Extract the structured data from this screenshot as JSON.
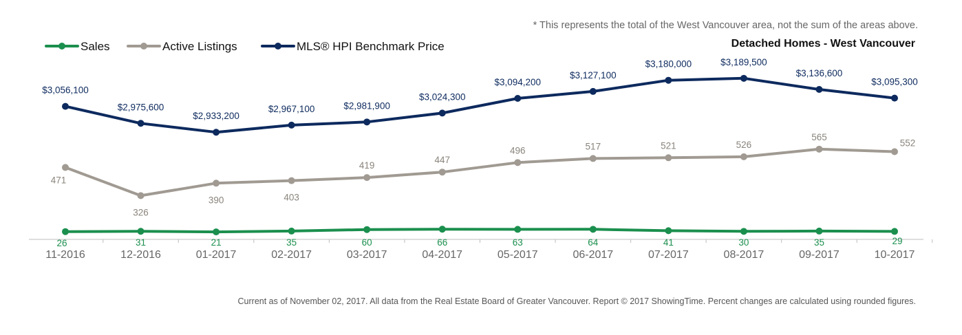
{
  "note": "* This represents the total of the West Vancouver area, not the sum of the areas above.",
  "subtitle": "Detached Homes - West Vancouver",
  "footer": "Current as of November 02, 2017. All data from the Real Estate Board of Greater Vancouver. Report © 2017 ShowingTime. Percent changes are calculated using rounded figures.",
  "chart_data": {
    "type": "line",
    "title": "Detached Homes - West Vancouver",
    "categories": [
      "11-2016",
      "12-2016",
      "01-2017",
      "02-2017",
      "03-2017",
      "04-2017",
      "05-2017",
      "06-2017",
      "07-2017",
      "08-2017",
      "09-2017",
      "10-2017"
    ],
    "legend_position": "top-left",
    "grid": false,
    "series": [
      {
        "name": "Sales",
        "color": "#1b8f4e",
        "label_color": "#1b8f4e",
        "values": [
          26,
          31,
          21,
          35,
          60,
          66,
          63,
          64,
          41,
          30,
          35,
          29
        ],
        "labels": [
          "26",
          "31",
          "21",
          "35",
          "60",
          "66",
          "63",
          "64",
          "41",
          "30",
          "35",
          "29"
        ]
      },
      {
        "name": "Active Listings",
        "color": "#a09a92",
        "label_color": "#8a847c",
        "values": [
          471,
          326,
          390,
          403,
          419,
          447,
          496,
          517,
          521,
          526,
          565,
          552
        ],
        "labels": [
          "471",
          "326",
          "390",
          "403",
          "419",
          "447",
          "496",
          "517",
          "521",
          "526",
          "565",
          "552"
        ]
      },
      {
        "name": "MLS® HPI Benchmark Price",
        "color": "#0d2a5e",
        "label_color": "#0d2a5e",
        "values": [
          3056100,
          2975600,
          2933200,
          2967100,
          2981900,
          3024300,
          3094200,
          3127100,
          3180000,
          3189500,
          3136600,
          3095300
        ],
        "labels": [
          "$3,056,100",
          "$2,975,600",
          "$2,933,200",
          "$2,967,100",
          "$2,981,900",
          "$3,024,300",
          "$3,094,200",
          "$3,127,100",
          "$3,180,000",
          "$3,189,500",
          "$3,136,600",
          "$3,095,300"
        ]
      }
    ]
  }
}
